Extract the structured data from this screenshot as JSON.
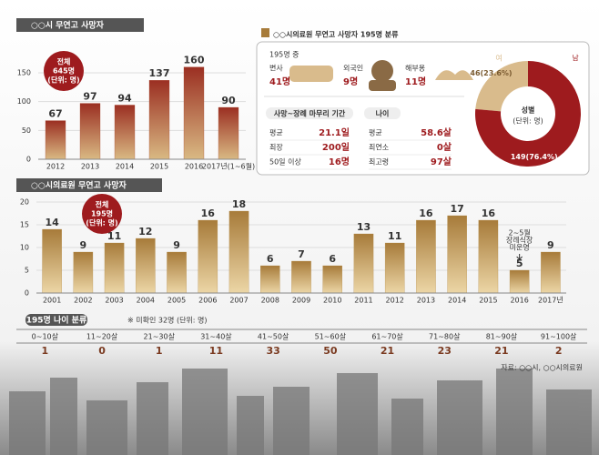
{
  "chart_data": [
    {
      "type": "bar",
      "title": "○○시 무연고 사망자",
      "categories": [
        "2012",
        "2013",
        "2014",
        "2015",
        "2016",
        "2017년(1~6월)"
      ],
      "values": [
        67,
        97,
        94,
        137,
        160,
        90
      ],
      "ylim": [
        0,
        180
      ],
      "yticks": [
        0,
        50,
        100,
        150
      ],
      "grid": true,
      "color": "#a8452c",
      "annotations": [
        "전체",
        "645명",
        "(단위: 명)"
      ]
    },
    {
      "type": "bar",
      "title": "○○시의료원 무연고 사망자",
      "categories": [
        "2001",
        "2002",
        "2003",
        "2004",
        "2005",
        "2006",
        "2007",
        "2008",
        "2009",
        "2010",
        "2011",
        "2012",
        "2013",
        "2014",
        "2015",
        "2016",
        "2017년"
      ],
      "values": [
        14,
        9,
        11,
        12,
        9,
        16,
        18,
        6,
        7,
        6,
        13,
        11,
        16,
        17,
        16,
        5,
        9
      ],
      "ylim": [
        0,
        20
      ],
      "yticks": [
        0,
        5,
        10,
        15,
        20
      ],
      "grid": true,
      "color": "#b48a45",
      "annotations": [
        "전체",
        "195명",
        "(단위: 명)"
      ],
      "note": [
        "2~5월",
        "장례식장",
        "미운영"
      ]
    },
    {
      "type": "pie",
      "title": "성별",
      "subtitle": "(단위: 명)",
      "categories": [
        "여",
        "남"
      ],
      "values": [
        46,
        149
      ],
      "value_labels": [
        "46(23.6%)",
        "149(76.4%)"
      ],
      "colors": [
        "#d9bb8c",
        "#9e1b1e"
      ]
    }
  ],
  "classification": {
    "title": "○○시의료원 무연고 사망자 195명 분류",
    "subtitle": "195명 중",
    "items": [
      {
        "label": "변사",
        "value": "41명"
      },
      {
        "label": "외국인",
        "value": "9명"
      },
      {
        "label": "해부용",
        "value": "11명"
      }
    ],
    "period": {
      "title": "사망~장례 마무리 기간",
      "rows": [
        [
          "평균",
          "21.1일"
        ],
        [
          "최장",
          "200일"
        ],
        [
          "50일 이상",
          "16명"
        ]
      ]
    },
    "age": {
      "title": "나이",
      "rows": [
        [
          "평균",
          "58.6살"
        ],
        [
          "최연소",
          "0살"
        ],
        [
          "최고령",
          "97살"
        ]
      ]
    }
  },
  "age_distribution": {
    "title": "195명 나이 분류",
    "note": "※ 미확인 32명 (단위: 명)",
    "columns": [
      "0~10살",
      "11~20살",
      "21~30살",
      "31~40살",
      "41~50살",
      "51~60살",
      "61~70살",
      "71~80살",
      "81~90살",
      "91~100살"
    ],
    "values": [
      1,
      0,
      1,
      11,
      33,
      50,
      21,
      23,
      21,
      2
    ]
  },
  "source": "자료: ○○시, ○○시의료원"
}
